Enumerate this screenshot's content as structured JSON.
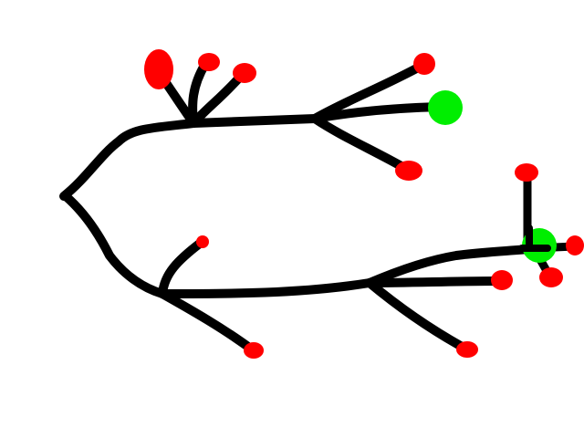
{
  "colors": {
    "background": "#ffffff",
    "branch": "#000000",
    "tip_red": "#ff0000",
    "tip_green": "#00ee00"
  },
  "tree": {
    "root_count": 1,
    "top_subtree": {
      "tips": [
        "red",
        "red",
        "red",
        "red",
        "green",
        "red"
      ]
    },
    "bottom_subtree": {
      "tips": [
        "red",
        "red",
        "red",
        "red",
        "red",
        "green",
        "red",
        "red"
      ]
    },
    "tip_totals": {
      "red": 12,
      "green": 2
    }
  }
}
